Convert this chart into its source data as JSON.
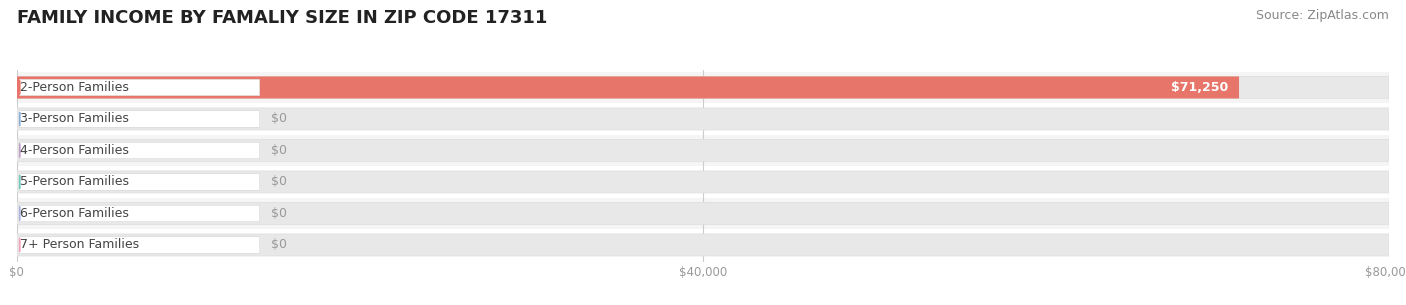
{
  "title": "FAMILY INCOME BY FAMALIY SIZE IN ZIP CODE 17311",
  "source": "Source: ZipAtlas.com",
  "categories": [
    "2-Person Families",
    "3-Person Families",
    "4-Person Families",
    "5-Person Families",
    "6-Person Families",
    "7+ Person Families"
  ],
  "values": [
    71250,
    0,
    0,
    0,
    0,
    0
  ],
  "bar_colors": [
    "#e8756a",
    "#8ab0d8",
    "#c09ec8",
    "#6dcabd",
    "#a8b4e0",
    "#f4a0b8"
  ],
  "xlim": [
    0,
    80000
  ],
  "xticks": [
    0,
    40000,
    80000
  ],
  "xtick_labels": [
    "$0",
    "$40,000",
    "$80,000"
  ],
  "value_label_color_bar": "#ffffff",
  "value_label_color_zero": "#999999",
  "background_color": "#ffffff",
  "row_bg_even": "#f5f5f5",
  "row_bg_odd": "#ffffff",
  "bar_background_color": "#e8e8e8",
  "title_fontsize": 13,
  "source_fontsize": 9,
  "bar_height": 0.7,
  "label_fontsize": 9,
  "value_fontsize": 9
}
